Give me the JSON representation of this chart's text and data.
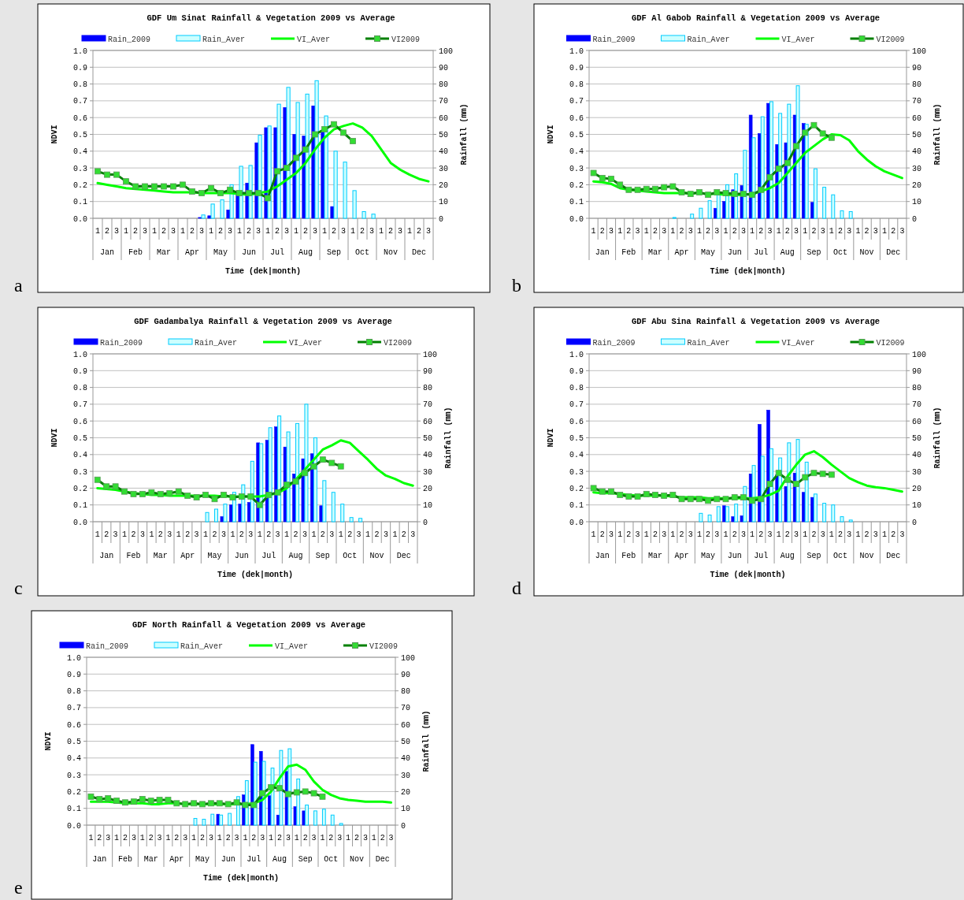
{
  "chart_data": [
    {
      "type": "bar",
      "title": "GDF Um Sinat Rainfall & Vegetation 2009 vs Average",
      "xlabel": "Time (dek|month)",
      "ylabel": "NDVI",
      "y2label": "Rainfall (mm)",
      "annotations": [
        "a",
        "Jan",
        "Feb",
        "Mar",
        "Apr",
        "May",
        "Jun",
        "Jul",
        "Aug",
        "Sep",
        "Oct",
        "Nov",
        "Dec"
      ],
      "categories": [
        "1",
        "2",
        "3",
        "1",
        "2",
        "3",
        "1",
        "2",
        "3",
        "1",
        "2",
        "3",
        "1",
        "2",
        "3",
        "1",
        "2",
        "3",
        "1",
        "2",
        "3",
        "1",
        "2",
        "3",
        "1",
        "2",
        "3",
        "1",
        "2",
        "3",
        "1",
        "2",
        "3",
        "1",
        "2",
        "3"
      ],
      "ylim": [
        0,
        1
      ],
      "yticks": [
        {
          "value": 0,
          "label": "0.0"
        },
        {
          "value": 0.1,
          "label": "0.1"
        },
        {
          "value": 0.2,
          "label": "0.2"
        },
        {
          "value": 0.3,
          "label": "0.3"
        },
        {
          "value": 0.4,
          "label": "0.4"
        },
        {
          "value": 0.5,
          "label": "0.5"
        },
        {
          "value": 0.6,
          "label": "0.6"
        },
        {
          "value": 0.7,
          "label": "0.7"
        },
        {
          "value": 0.8,
          "label": "0.8"
        },
        {
          "value": 0.9,
          "label": "0.9"
        },
        {
          "value": 1,
          "label": "1.0"
        }
      ],
      "y2lim": [
        0,
        100
      ],
      "y2ticks": [
        0,
        10,
        20,
        30,
        40,
        50,
        60,
        70,
        80,
        90,
        100
      ],
      "grid": "y",
      "legend": "top",
      "series": [
        {
          "name": "Rain_2009",
          "type": "bar",
          "axis": "y2",
          "color": "#0000ff",
          "values": [
            0,
            0,
            0,
            0,
            0,
            0,
            0,
            0,
            0,
            0,
            0,
            0.5,
            1.5,
            0,
            5,
            14,
            21,
            45,
            54,
            54,
            66,
            50,
            49,
            67,
            52,
            7,
            0,
            0,
            0,
            0,
            0,
            0,
            0,
            0,
            0,
            0
          ]
        },
        {
          "name": "Rain_Aver",
          "type": "bar",
          "axis": "y2",
          "color": "#00ccff",
          "values": [
            0,
            0,
            0,
            0,
            0,
            0,
            0,
            0,
            0,
            0,
            0,
            2,
            8.5,
            11,
            20,
            31,
            31.5,
            49.5,
            55,
            68,
            78,
            69,
            74,
            82,
            61,
            40,
            33.5,
            16.5,
            4,
            2.5,
            0,
            0,
            0,
            0,
            0,
            0
          ]
        },
        {
          "name": "VI_Aver",
          "type": "line",
          "color": "#00ff00",
          "values": [
            0.21,
            0.2,
            0.19,
            0.18,
            0.175,
            0.17,
            0.165,
            0.16,
            0.155,
            0.155,
            0.155,
            0.15,
            0.15,
            0.15,
            0.15,
            0.145,
            0.14,
            0.15,
            0.16,
            0.19,
            0.23,
            0.27,
            0.33,
            0.41,
            0.48,
            0.53,
            0.55,
            0.565,
            0.54,
            0.49,
            0.41,
            0.33,
            0.29,
            0.26,
            0.235,
            0.22
          ]
        },
        {
          "name": "VI2009",
          "type": "line",
          "marker": "square",
          "color": "#008000",
          "values": [
            0.28,
            0.26,
            0.26,
            0.22,
            0.19,
            0.19,
            0.19,
            0.19,
            0.19,
            0.2,
            0.16,
            0.15,
            0.18,
            0.15,
            0.17,
            0.15,
            0.15,
            0.15,
            0.12,
            0.28,
            0.3,
            0.36,
            0.41,
            0.5,
            0.53,
            0.56,
            0.51,
            0.46,
            null,
            null,
            null,
            null,
            null,
            null,
            null,
            null
          ]
        }
      ]
    },
    {
      "type": "bar",
      "title": "GDF Al Gabob Rainfall & Vegetation 2009 vs Average",
      "xlabel": "Time (dek|month)",
      "ylabel": "NDVI",
      "y2label": "Rainfall (mm)",
      "annotations": [
        "b",
        "Jan",
        "Feb",
        "Mar",
        "Apr",
        "May",
        "Jun",
        "Jul",
        "Aug",
        "Sep",
        "Oct",
        "Nov",
        "Dec"
      ],
      "categories": [
        "1",
        "2",
        "3",
        "1",
        "2",
        "3",
        "1",
        "2",
        "3",
        "1",
        "2",
        "3",
        "1",
        "2",
        "3",
        "1",
        "2",
        "3",
        "1",
        "2",
        "3",
        "1",
        "2",
        "3",
        "1",
        "2",
        "3",
        "1",
        "2",
        "3",
        "1",
        "2",
        "3",
        "1",
        "2",
        "3"
      ],
      "ylim": [
        0,
        1
      ],
      "yticks": [
        {
          "value": 0,
          "label": "0.0"
        },
        {
          "value": 0.1,
          "label": "0.1"
        },
        {
          "value": 0.2,
          "label": "0.2"
        },
        {
          "value": 0.3,
          "label": "0.3"
        },
        {
          "value": 0.4,
          "label": "0.4"
        },
        {
          "value": 0.5,
          "label": "0.5"
        },
        {
          "value": 0.6,
          "label": "0.6"
        },
        {
          "value": 0.7,
          "label": "0.7"
        },
        {
          "value": 0.8,
          "label": "0.8"
        },
        {
          "value": 0.9,
          "label": "0.9"
        },
        {
          "value": 1,
          "label": "1.0"
        }
      ],
      "y2lim": [
        0,
        100
      ],
      "y2ticks": [
        0,
        10,
        20,
        30,
        40,
        50,
        60,
        70,
        80,
        90,
        100
      ],
      "grid": "y",
      "legend": "top",
      "series": [
        {
          "name": "Rain_2009",
          "type": "bar",
          "axis": "y2",
          "color": "#0000ff",
          "values": [
            0,
            0,
            0,
            0,
            0,
            0,
            0,
            0,
            0,
            0,
            0,
            0,
            0,
            0,
            6,
            10,
            17,
            19.5,
            61.5,
            50.5,
            68.5,
            44,
            45,
            61.5,
            56.5,
            9.5,
            0,
            0,
            0,
            0,
            0,
            0,
            0,
            0,
            0,
            0
          ]
        },
        {
          "name": "Rain_Aver",
          "type": "bar",
          "axis": "y2",
          "color": "#00ccff",
          "values": [
            0,
            0,
            0,
            0,
            0,
            0,
            0,
            0,
            0,
            0.5,
            0,
            2.5,
            6,
            10.5,
            14,
            20,
            26.5,
            40.5,
            48,
            60.5,
            69.5,
            62.5,
            68,
            79,
            56,
            29.5,
            18.5,
            14,
            4.5,
            4,
            0,
            0,
            0,
            0,
            0,
            0
          ]
        },
        {
          "name": "VI_Aver",
          "type": "line",
          "color": "#00ff00",
          "values": [
            0.22,
            0.215,
            0.205,
            0.18,
            0.17,
            0.165,
            0.16,
            0.155,
            0.15,
            0.15,
            0.15,
            0.15,
            0.15,
            0.145,
            0.145,
            0.14,
            0.14,
            0.14,
            0.145,
            0.16,
            0.18,
            0.21,
            0.27,
            0.33,
            0.39,
            0.43,
            0.47,
            0.5,
            0.495,
            0.465,
            0.4,
            0.35,
            0.31,
            0.28,
            0.26,
            0.24
          ]
        },
        {
          "name": "VI2009",
          "type": "line",
          "marker": "square",
          "color": "#008000",
          "values": [
            0.27,
            0.24,
            0.235,
            0.2,
            0.17,
            0.17,
            0.175,
            0.175,
            0.185,
            0.19,
            0.155,
            0.145,
            0.155,
            0.14,
            0.155,
            0.15,
            0.145,
            0.145,
            0.14,
            0.17,
            0.245,
            0.295,
            0.33,
            0.43,
            0.51,
            0.555,
            0.505,
            0.48,
            null,
            null,
            null,
            null,
            null,
            null,
            null,
            null
          ]
        }
      ]
    },
    {
      "type": "bar",
      "title": "GDF Gadambalya Rainfall & Vegetation 2009 vs Average",
      "xlabel": "Time (dek|month)",
      "ylabel": "NDVI",
      "y2label": "Rainfall (mm)",
      "annotations": [
        "c",
        "Jan",
        "Feb",
        "Mar",
        "Apr",
        "May",
        "Jun",
        "Jul",
        "Aug",
        "Sep",
        "Oct",
        "Nov",
        "Dec"
      ],
      "categories": [
        "1",
        "2",
        "3",
        "1",
        "2",
        "3",
        "1",
        "2",
        "3",
        "1",
        "2",
        "3",
        "1",
        "2",
        "3",
        "1",
        "2",
        "3",
        "1",
        "2",
        "3",
        "1",
        "2",
        "3",
        "1",
        "2",
        "3",
        "1",
        "2",
        "3",
        "1",
        "2",
        "3",
        "1",
        "2",
        "3"
      ],
      "ylim": [
        0,
        1
      ],
      "yticks": [
        {
          "value": 0,
          "label": "0.0"
        },
        {
          "value": 0.1,
          "label": "0.1"
        },
        {
          "value": 0.2,
          "label": "0.2"
        },
        {
          "value": 0.3,
          "label": "0.3"
        },
        {
          "value": 0.4,
          "label": "0.4"
        },
        {
          "value": 0.5,
          "label": "0.5"
        },
        {
          "value": 0.6,
          "label": "0.6"
        },
        {
          "value": 0.7,
          "label": "0.7"
        },
        {
          "value": 0.8,
          "label": "0.8"
        },
        {
          "value": 0.9,
          "label": "0.9"
        },
        {
          "value": 1,
          "label": "1.0"
        }
      ],
      "y2lim": [
        0,
        100
      ],
      "y2ticks": [
        0,
        10,
        20,
        30,
        40,
        50,
        60,
        70,
        80,
        90,
        100
      ],
      "grid": "y",
      "legend": "top",
      "series": [
        {
          "name": "Rain_2009",
          "type": "bar",
          "axis": "y2",
          "color": "#0000ff",
          "values": [
            0,
            0,
            0,
            0,
            0,
            0,
            0,
            0,
            0,
            0,
            0,
            0,
            0,
            0,
            3,
            10,
            10.5,
            11.5,
            47,
            48.5,
            56.5,
            44.5,
            28.5,
            37.5,
            40.5,
            9.5,
            0,
            0,
            0,
            0,
            0,
            0,
            0,
            0,
            0,
            0
          ]
        },
        {
          "name": "Rain_Aver",
          "type": "bar",
          "axis": "y2",
          "color": "#00ccff",
          "values": [
            0,
            0,
            0,
            0,
            0,
            0,
            0,
            0,
            0,
            0,
            0,
            0,
            5.5,
            7.5,
            10.5,
            17.5,
            22,
            36,
            46.5,
            56,
            63,
            53.5,
            58.5,
            70,
            50,
            24.5,
            17.5,
            10.5,
            2.5,
            2,
            0,
            0,
            0,
            0,
            0,
            0
          ]
        },
        {
          "name": "VI_Aver",
          "type": "line",
          "color": "#00ff00",
          "values": [
            0.2,
            0.195,
            0.19,
            0.18,
            0.17,
            0.165,
            0.16,
            0.16,
            0.155,
            0.155,
            0.155,
            0.155,
            0.155,
            0.155,
            0.15,
            0.15,
            0.15,
            0.15,
            0.15,
            0.16,
            0.17,
            0.2,
            0.25,
            0.31,
            0.37,
            0.43,
            0.455,
            0.485,
            0.47,
            0.42,
            0.37,
            0.315,
            0.275,
            0.255,
            0.23,
            0.215
          ]
        },
        {
          "name": "VI2009",
          "type": "line",
          "marker": "square",
          "color": "#008000",
          "values": [
            0.25,
            0.21,
            0.21,
            0.18,
            0.165,
            0.165,
            0.175,
            0.165,
            0.17,
            0.18,
            0.155,
            0.145,
            0.16,
            0.135,
            0.16,
            0.145,
            0.15,
            0.15,
            0.1,
            0.16,
            0.175,
            0.22,
            0.24,
            0.29,
            0.33,
            0.37,
            0.35,
            0.33,
            null,
            null,
            null,
            null,
            null,
            null,
            null,
            null
          ]
        }
      ]
    },
    {
      "type": "bar",
      "title": "GDF Abu Sina Rainfall & Vegetation 2009 vs Average",
      "xlabel": "Time (dek|month)",
      "ylabel": "NDVI",
      "y2label": "Rainfall (mm)",
      "annotations": [
        "d",
        "Jan",
        "Feb",
        "Mar",
        "Apr",
        "May",
        "Jun",
        "Jul",
        "Aug",
        "Sep",
        "Oct",
        "Nov",
        "Dec"
      ],
      "categories": [
        "1",
        "2",
        "3",
        "1",
        "2",
        "3",
        "1",
        "2",
        "3",
        "1",
        "2",
        "3",
        "1",
        "2",
        "3",
        "1",
        "2",
        "3",
        "1",
        "2",
        "3",
        "1",
        "2",
        "3",
        "1",
        "2",
        "3",
        "1",
        "2",
        "3",
        "1",
        "2",
        "3",
        "1",
        "2",
        "3"
      ],
      "ylim": [
        0,
        1
      ],
      "yticks": [
        {
          "value": 0,
          "label": "0.0"
        },
        {
          "value": 0.1,
          "label": "0.1"
        },
        {
          "value": 0.2,
          "label": "0.2"
        },
        {
          "value": 0.3,
          "label": "0.3"
        },
        {
          "value": 0.4,
          "label": "0.4"
        },
        {
          "value": 0.5,
          "label": "0.5"
        },
        {
          "value": 0.6,
          "label": "0.6"
        },
        {
          "value": 0.7,
          "label": "0.7"
        },
        {
          "value": 0.8,
          "label": "0.8"
        },
        {
          "value": 0.9,
          "label": "0.9"
        },
        {
          "value": 1,
          "label": "1.0"
        }
      ],
      "y2lim": [
        0,
        100
      ],
      "y2ticks": [
        0,
        10,
        20,
        30,
        40,
        50,
        60,
        70,
        80,
        90,
        100
      ],
      "grid": "y",
      "legend": "top",
      "series": [
        {
          "name": "Rain_2009",
          "type": "bar",
          "axis": "y2",
          "color": "#0000ff",
          "values": [
            0,
            0,
            0,
            0,
            0,
            0,
            0,
            0,
            0,
            0,
            0,
            0,
            0,
            0,
            0,
            9.5,
            3,
            3.5,
            28.5,
            58,
            66.5,
            28,
            21,
            29,
            17.5,
            14.5,
            0,
            0,
            0,
            0,
            0,
            0,
            0,
            0,
            0,
            0
          ]
        },
        {
          "name": "Rain_Aver",
          "type": "bar",
          "axis": "y2",
          "color": "#00ccff",
          "values": [
            0,
            0,
            0,
            0,
            0,
            0,
            0,
            0,
            0,
            0,
            0,
            0,
            5,
            4,
            9,
            9,
            10.5,
            21,
            33.5,
            39,
            43.5,
            38,
            47,
            49,
            35.5,
            16.5,
            11,
            10,
            3,
            1,
            0,
            0,
            0,
            0,
            0,
            0
          ]
        },
        {
          "name": "VI_Aver",
          "type": "line",
          "color": "#00ff00",
          "values": [
            0.175,
            0.17,
            0.17,
            0.165,
            0.16,
            0.155,
            0.155,
            0.155,
            0.155,
            0.15,
            0.145,
            0.145,
            0.145,
            0.14,
            0.14,
            0.14,
            0.14,
            0.14,
            0.14,
            0.145,
            0.16,
            0.185,
            0.27,
            0.34,
            0.4,
            0.42,
            0.385,
            0.34,
            0.3,
            0.26,
            0.235,
            0.215,
            0.205,
            0.2,
            0.19,
            0.18
          ]
        },
        {
          "name": "VI2009",
          "type": "line",
          "marker": "square",
          "color": "#008000",
          "values": [
            0.2,
            0.18,
            0.18,
            0.16,
            0.15,
            0.15,
            0.165,
            0.16,
            0.155,
            0.16,
            0.135,
            0.135,
            0.135,
            0.125,
            0.135,
            0.135,
            0.145,
            0.145,
            0.125,
            0.135,
            0.225,
            0.29,
            0.25,
            0.225,
            0.265,
            0.29,
            0.285,
            0.28,
            null,
            null,
            null,
            null,
            null,
            null,
            null,
            null
          ]
        }
      ]
    },
    {
      "type": "bar",
      "title": "GDF North Rainfall & Vegetation 2009 vs Average",
      "xlabel": "Time (dek|month)",
      "ylabel": "NDVI",
      "y2label": "Rainfall (mm)",
      "annotations": [
        "e",
        "Jan",
        "Feb",
        "Mar",
        "Apr",
        "May",
        "Jun",
        "Jul",
        "Aug",
        "Sep",
        "Oct",
        "Nov",
        "Dec"
      ],
      "categories": [
        "1",
        "2",
        "3",
        "1",
        "2",
        "3",
        "1",
        "2",
        "3",
        "1",
        "2",
        "3",
        "1",
        "2",
        "3",
        "1",
        "2",
        "3",
        "1",
        "2",
        "3",
        "1",
        "2",
        "3",
        "1",
        "2",
        "3",
        "1",
        "2",
        "3",
        "1",
        "2",
        "3",
        "1",
        "2",
        "3"
      ],
      "ylim": [
        0,
        1
      ],
      "yticks": [
        {
          "value": 0,
          "label": "0.0"
        },
        {
          "value": 0.1,
          "label": "0.1"
        },
        {
          "value": 0.2,
          "label": "0.2"
        },
        {
          "value": 0.3,
          "label": "0.3"
        },
        {
          "value": 0.4,
          "label": "0.4"
        },
        {
          "value": 0.5,
          "label": "0.5"
        },
        {
          "value": 0.6,
          "label": "0.6"
        },
        {
          "value": 0.7,
          "label": "0.7"
        },
        {
          "value": 0.8,
          "label": "0.8"
        },
        {
          "value": 0.9,
          "label": "0.9"
        },
        {
          "value": 1,
          "label": "1.0"
        }
      ],
      "y2lim": [
        0,
        100
      ],
      "y2ticks": [
        0,
        10,
        20,
        30,
        40,
        50,
        60,
        70,
        80,
        90,
        100
      ],
      "grid": "y",
      "legend": "top",
      "series": [
        {
          "name": "Rain_2009",
          "type": "bar",
          "axis": "y2",
          "color": "#0000ff",
          "values": [
            0,
            0,
            0,
            0,
            0,
            0,
            0,
            0,
            0,
            0,
            0,
            0,
            0,
            0,
            0,
            6.5,
            0,
            0,
            18,
            48,
            44,
            17.5,
            6,
            32,
            11,
            8.5,
            0,
            0,
            0,
            0,
            0,
            0,
            0,
            0,
            0,
            0
          ]
        },
        {
          "name": "Rain_Aver",
          "type": "bar",
          "axis": "y2",
          "color": "#00ccff",
          "values": [
            0,
            0,
            0,
            0,
            0,
            0,
            0,
            0,
            0,
            0,
            0,
            0,
            4,
            3.5,
            6.5,
            6,
            7,
            17,
            26.5,
            37.5,
            38,
            34,
            44.5,
            45.5,
            27.5,
            12,
            8.5,
            9.5,
            6,
            1,
            0,
            0,
            0,
            0,
            0,
            0
          ]
        },
        {
          "name": "VI_Aver",
          "type": "line",
          "color": "#00ff00",
          "values": [
            0.14,
            0.14,
            0.14,
            0.135,
            0.13,
            0.13,
            0.13,
            0.125,
            0.125,
            0.13,
            0.13,
            0.125,
            0.125,
            0.125,
            0.125,
            0.125,
            0.125,
            0.125,
            0.125,
            0.13,
            0.15,
            0.2,
            0.28,
            0.35,
            0.36,
            0.33,
            0.26,
            0.21,
            0.18,
            0.16,
            0.15,
            0.145,
            0.14,
            0.14,
            0.14,
            0.135
          ]
        },
        {
          "name": "VI2009",
          "type": "line",
          "marker": "square",
          "color": "#008000",
          "values": [
            0.17,
            0.155,
            0.16,
            0.145,
            0.135,
            0.14,
            0.155,
            0.145,
            0.15,
            0.15,
            0.13,
            0.125,
            0.13,
            0.125,
            0.13,
            0.13,
            0.125,
            0.135,
            0.12,
            0.12,
            0.19,
            0.225,
            0.22,
            0.185,
            0.195,
            0.2,
            0.19,
            0.17,
            null,
            null,
            null,
            null,
            null,
            null,
            null,
            null
          ]
        }
      ]
    }
  ]
}
